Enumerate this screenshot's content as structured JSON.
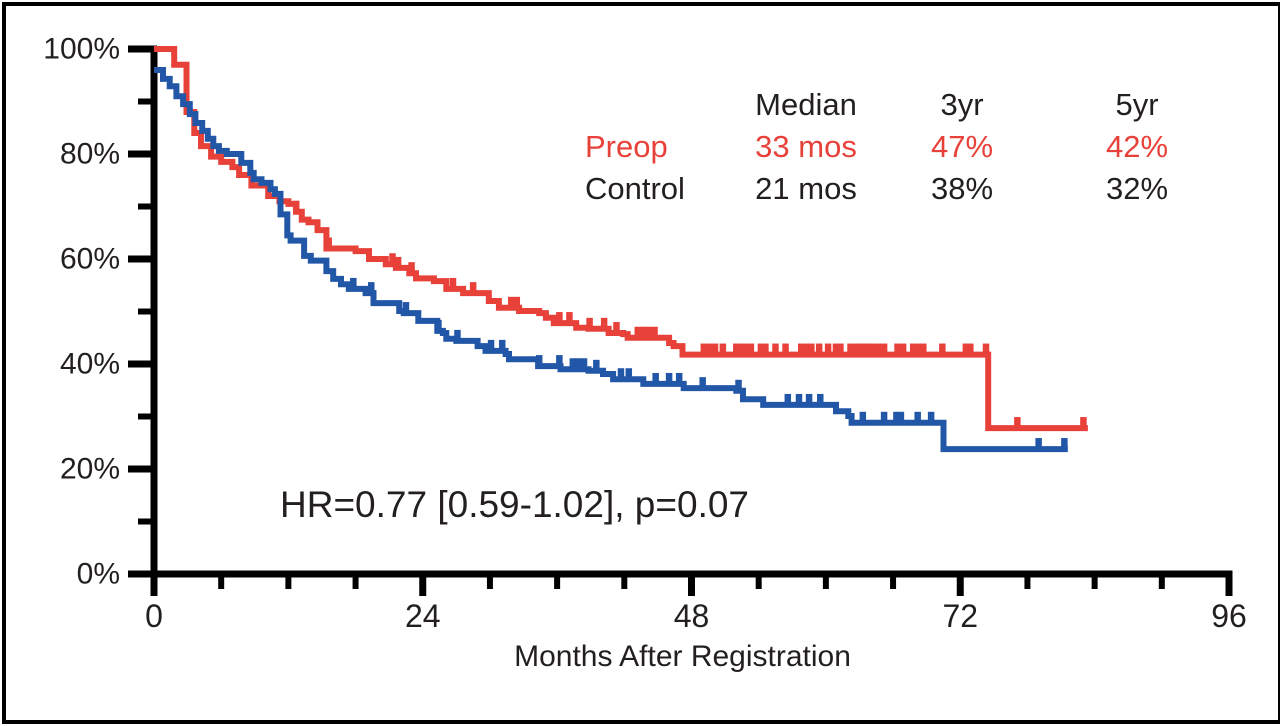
{
  "figure": {
    "x_axis_title": "Months After Registration",
    "hr_annotation": "HR=0.77 [0.59-1.02], p=0.07",
    "background_color": "#ffffff",
    "axis_color": "#000000",
    "text_color": "#231f20"
  },
  "stats_table": {
    "headers": {
      "median": "Median",
      "yr3": "3yr",
      "yr5": "5yr"
    },
    "rows": [
      {
        "label": "Preop",
        "median": "33 mos",
        "yr3": "47%",
        "yr5": "42%",
        "color": "#e8413a"
      },
      {
        "label": "Control",
        "median": "21 mos",
        "yr3": "38%",
        "yr5": "32%",
        "color": "#231f20"
      }
    ]
  },
  "chart_data": {
    "type": "line",
    "subtype": "kaplan-meier-step",
    "title": "",
    "xlabel": "Months After Registration",
    "ylabel": "",
    "xlim": [
      0,
      96
    ],
    "ylim": [
      0,
      100
    ],
    "x_major_ticks": [
      0,
      24,
      48,
      72,
      96
    ],
    "x_minor_step": 6,
    "y_major_ticks": [
      0,
      20,
      40,
      60,
      80,
      100
    ],
    "y_minor_step": 10,
    "y_tick_suffix": "%",
    "grid": false,
    "legend_position": "none",
    "annotation": "HR=0.77 [0.59-1.02], p=0.07",
    "series": [
      {
        "name": "Preop",
        "color": "#e8413a",
        "median": "33 mos",
        "pct_3yr": "47%",
        "pct_5yr": "42%",
        "points": [
          [
            0,
            100
          ],
          [
            1.8,
            97
          ],
          [
            2.9,
            88
          ],
          [
            3.6,
            84
          ],
          [
            4.2,
            81.5
          ],
          [
            5.1,
            79.5
          ],
          [
            6,
            78.5
          ],
          [
            7,
            77.5
          ],
          [
            7.6,
            76
          ],
          [
            8.7,
            74
          ],
          [
            10.2,
            72
          ],
          [
            11.2,
            71
          ],
          [
            12,
            70.5
          ],
          [
            12.7,
            69
          ],
          [
            13.2,
            67.5
          ],
          [
            13.8,
            67
          ],
          [
            14.6,
            65.5
          ],
          [
            15.4,
            62
          ],
          [
            18,
            61.5
          ],
          [
            19.2,
            60
          ],
          [
            20.7,
            59
          ],
          [
            21.6,
            58.3
          ],
          [
            22.8,
            57.3
          ],
          [
            23.4,
            56.3
          ],
          [
            25,
            55.8
          ],
          [
            26.1,
            54.3
          ],
          [
            27.6,
            53.5
          ],
          [
            29.9,
            52
          ],
          [
            30.8,
            50.7
          ],
          [
            32.6,
            50.1
          ],
          [
            34.4,
            49.7
          ],
          [
            35,
            48.8
          ],
          [
            35.7,
            47.8
          ],
          [
            37.7,
            46.9
          ],
          [
            38.8,
            46.7
          ],
          [
            40.6,
            45.9
          ],
          [
            41.9,
            45.7
          ],
          [
            42.3,
            45
          ],
          [
            46,
            44
          ],
          [
            46.4,
            43.4
          ],
          [
            47.2,
            41.8
          ],
          [
            74.5,
            27.8
          ],
          [
            83.4,
            27.8
          ]
        ],
        "censor_ticks": [
          12.7,
          15.6,
          21.3,
          21.8,
          23,
          26.7,
          28.5,
          31.9,
          32.4,
          36.2,
          37.1,
          38.9,
          40.2,
          41.3,
          43.2,
          43.7,
          44.2,
          44.7,
          49.1,
          49.6,
          50.1,
          50.8,
          52,
          52.4,
          52.9,
          53.3,
          54.2,
          54.6,
          55.5,
          56.4,
          57.8,
          58.2,
          58.7,
          59.4,
          60.2,
          60.9,
          61.3,
          62.2,
          62.6,
          63,
          63.4,
          63.8,
          64.2,
          64.7,
          65.2,
          66.4,
          66.9,
          67.8,
          68.2,
          68.7,
          70.4,
          72.5,
          72.9,
          74.3,
          77.1,
          83
        ]
      },
      {
        "name": "Control",
        "color": "#2257a8",
        "median": "21 mos",
        "pct_3yr": "38%",
        "pct_5yr": "32%",
        "points": [
          [
            0,
            96
          ],
          [
            0.8,
            94.3
          ],
          [
            1.4,
            92.9
          ],
          [
            2,
            91
          ],
          [
            2.6,
            89.5
          ],
          [
            3.2,
            87.6
          ],
          [
            3.7,
            85.9
          ],
          [
            4.3,
            84.4
          ],
          [
            4.8,
            82.9
          ],
          [
            5.3,
            81.5
          ],
          [
            5.8,
            80.6
          ],
          [
            6.5,
            80
          ],
          [
            7.8,
            78.3
          ],
          [
            8.6,
            76.4
          ],
          [
            8.9,
            75.2
          ],
          [
            9.6,
            74.5
          ],
          [
            10.4,
            73.3
          ],
          [
            10.8,
            72.4
          ],
          [
            11.3,
            68.5
          ],
          [
            11.9,
            64.5
          ],
          [
            12.2,
            63.5
          ],
          [
            13.4,
            60.6
          ],
          [
            14,
            59.7
          ],
          [
            15.4,
            57.7
          ],
          [
            16,
            56.2
          ],
          [
            16.7,
            55.2
          ],
          [
            17.4,
            54.3
          ],
          [
            18.9,
            53.5
          ],
          [
            19.6,
            51.6
          ],
          [
            21.9,
            50.1
          ],
          [
            22.3,
            49.7
          ],
          [
            23.6,
            48.2
          ],
          [
            25.3,
            46.3
          ],
          [
            25.8,
            45.9
          ],
          [
            26.1,
            44.8
          ],
          [
            27,
            44.4
          ],
          [
            28.9,
            43.4
          ],
          [
            29.6,
            42.5
          ],
          [
            31.4,
            41.9
          ],
          [
            31.7,
            40.9
          ],
          [
            34.3,
            39.6
          ],
          [
            36.3,
            39
          ],
          [
            38.8,
            38.7
          ],
          [
            40.1,
            38.1
          ],
          [
            41,
            37.1
          ],
          [
            43.7,
            36.2
          ],
          [
            47.3,
            35.4
          ],
          [
            52,
            34.9
          ],
          [
            52.6,
            33.3
          ],
          [
            54.4,
            32.2
          ],
          [
            60.9,
            31
          ],
          [
            62,
            30.1
          ],
          [
            62.3,
            28.8
          ],
          [
            70.5,
            23.8
          ],
          [
            81.6,
            23.8
          ]
        ],
        "censor_ticks": [
          17.8,
          19.4,
          22.5,
          25.4,
          27.1,
          30.1,
          31.1,
          34.4,
          36.2,
          37.4,
          37.9,
          38.4,
          39.5,
          41.7,
          42.4,
          44.8,
          46,
          46.9,
          49,
          52.2,
          56.6,
          57.6,
          58.5,
          59.5,
          63.3,
          65.2,
          66.3,
          66.7,
          68.2,
          69.4,
          79,
          81.3
        ]
      }
    ]
  }
}
